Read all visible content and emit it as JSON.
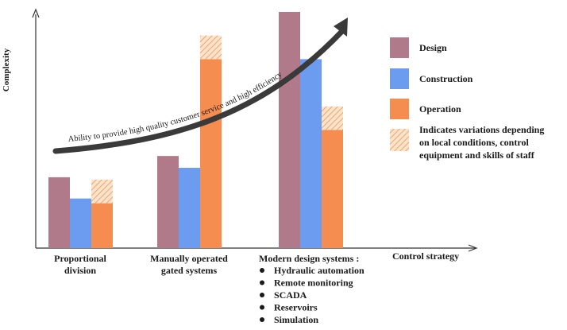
{
  "chart_data": {
    "type": "bar",
    "title": "",
    "ylabel": "Complexity",
    "xlabel": "Control strategy",
    "ylim": [
      0,
      100
    ],
    "grid": false,
    "legend_position": "right",
    "categories": [
      {
        "lines": [
          "Proportional",
          "division"
        ],
        "bullets": []
      },
      {
        "lines": [
          "Manually operated",
          "gated systems"
        ],
        "bullets": []
      },
      {
        "lines": [
          "Modern design systems :"
        ],
        "bullets": [
          "Hydraulic automation",
          "Remote monitoring",
          "SCADA",
          "Reservoirs",
          "Simulation"
        ]
      }
    ],
    "series": [
      {
        "name": "Design",
        "color": "#b07a8a",
        "values": [
          30,
          39,
          100
        ],
        "variation": [
          0,
          0,
          0
        ]
      },
      {
        "name": "Construction",
        "color": "#6b9cf0",
        "values": [
          21,
          34,
          80
        ],
        "variation": [
          0,
          0,
          0
        ]
      },
      {
        "name": "Operation",
        "color": "#f58c50",
        "values": [
          19,
          80,
          50
        ],
        "variation": [
          10,
          10,
          10
        ]
      }
    ],
    "variation_legend": [
      "Indicates variations depending",
      "on local conditions, control",
      "equipment and skills of staff"
    ],
    "variation_color": "#f6c49a",
    "trend_label": "Ability to provide high quality customer service and high efficiency"
  }
}
